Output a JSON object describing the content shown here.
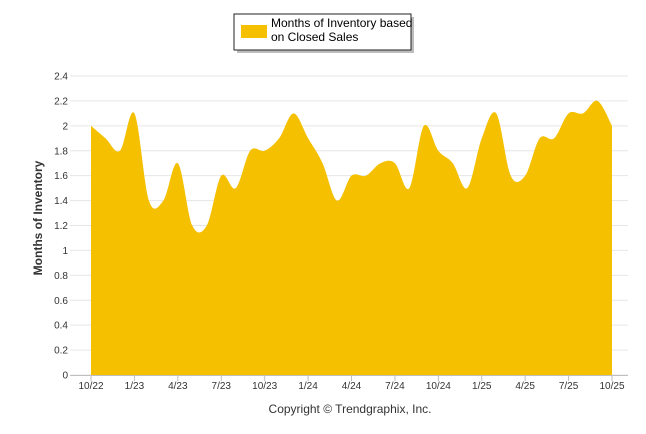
{
  "chart_data": {
    "type": "area",
    "ylabel": "Months of Inventory",
    "xlabel": "",
    "ylim": [
      0,
      2.4
    ],
    "yticks": [
      "0",
      "0.2",
      "0.4",
      "0.6",
      "0.8",
      "1",
      "1.2",
      "1.4",
      "1.6",
      "1.8",
      "2",
      "2.2",
      "2.4"
    ],
    "categories": [
      "10/22",
      "11/22",
      "12/22",
      "1/23",
      "2/23",
      "3/23",
      "4/23",
      "5/23",
      "6/23",
      "7/23",
      "8/23",
      "9/23",
      "10/23",
      "11/23",
      "12/23",
      "1/24",
      "2/24",
      "3/24",
      "4/24",
      "5/24",
      "6/24",
      "7/24",
      "8/24",
      "9/24",
      "10/24",
      "11/24",
      "12/24",
      "1/25",
      "2/25",
      "3/25",
      "4/25",
      "5/25",
      "6/25",
      "7/25",
      "8/25",
      "9/25",
      "10/25"
    ],
    "xtick_labels": [
      "10/22",
      "1/23",
      "4/23",
      "7/23",
      "10/23",
      "1/24",
      "4/24",
      "7/24",
      "10/24",
      "1/25",
      "4/25",
      "7/25",
      "10/25"
    ],
    "series": [
      {
        "name": "Months of Inventory based on Closed Sales",
        "color": "#f5c000",
        "values": [
          2.0,
          1.9,
          1.8,
          2.1,
          1.4,
          1.4,
          1.7,
          1.2,
          1.2,
          1.6,
          1.5,
          1.8,
          1.8,
          1.9,
          2.1,
          1.9,
          1.7,
          1.4,
          1.6,
          1.6,
          1.7,
          1.7,
          1.5,
          2.0,
          1.8,
          1.7,
          1.5,
          1.9,
          2.1,
          1.6,
          1.6,
          1.9,
          1.9,
          2.1,
          2.1,
          2.2,
          2.0
        ]
      }
    ],
    "legend": {
      "position": "top",
      "lines": [
        "Months of Inventory based",
        "on Closed Sales"
      ]
    },
    "grid": true
  },
  "footer": {
    "credit": "Copyright © Trendgraphix, Inc."
  }
}
